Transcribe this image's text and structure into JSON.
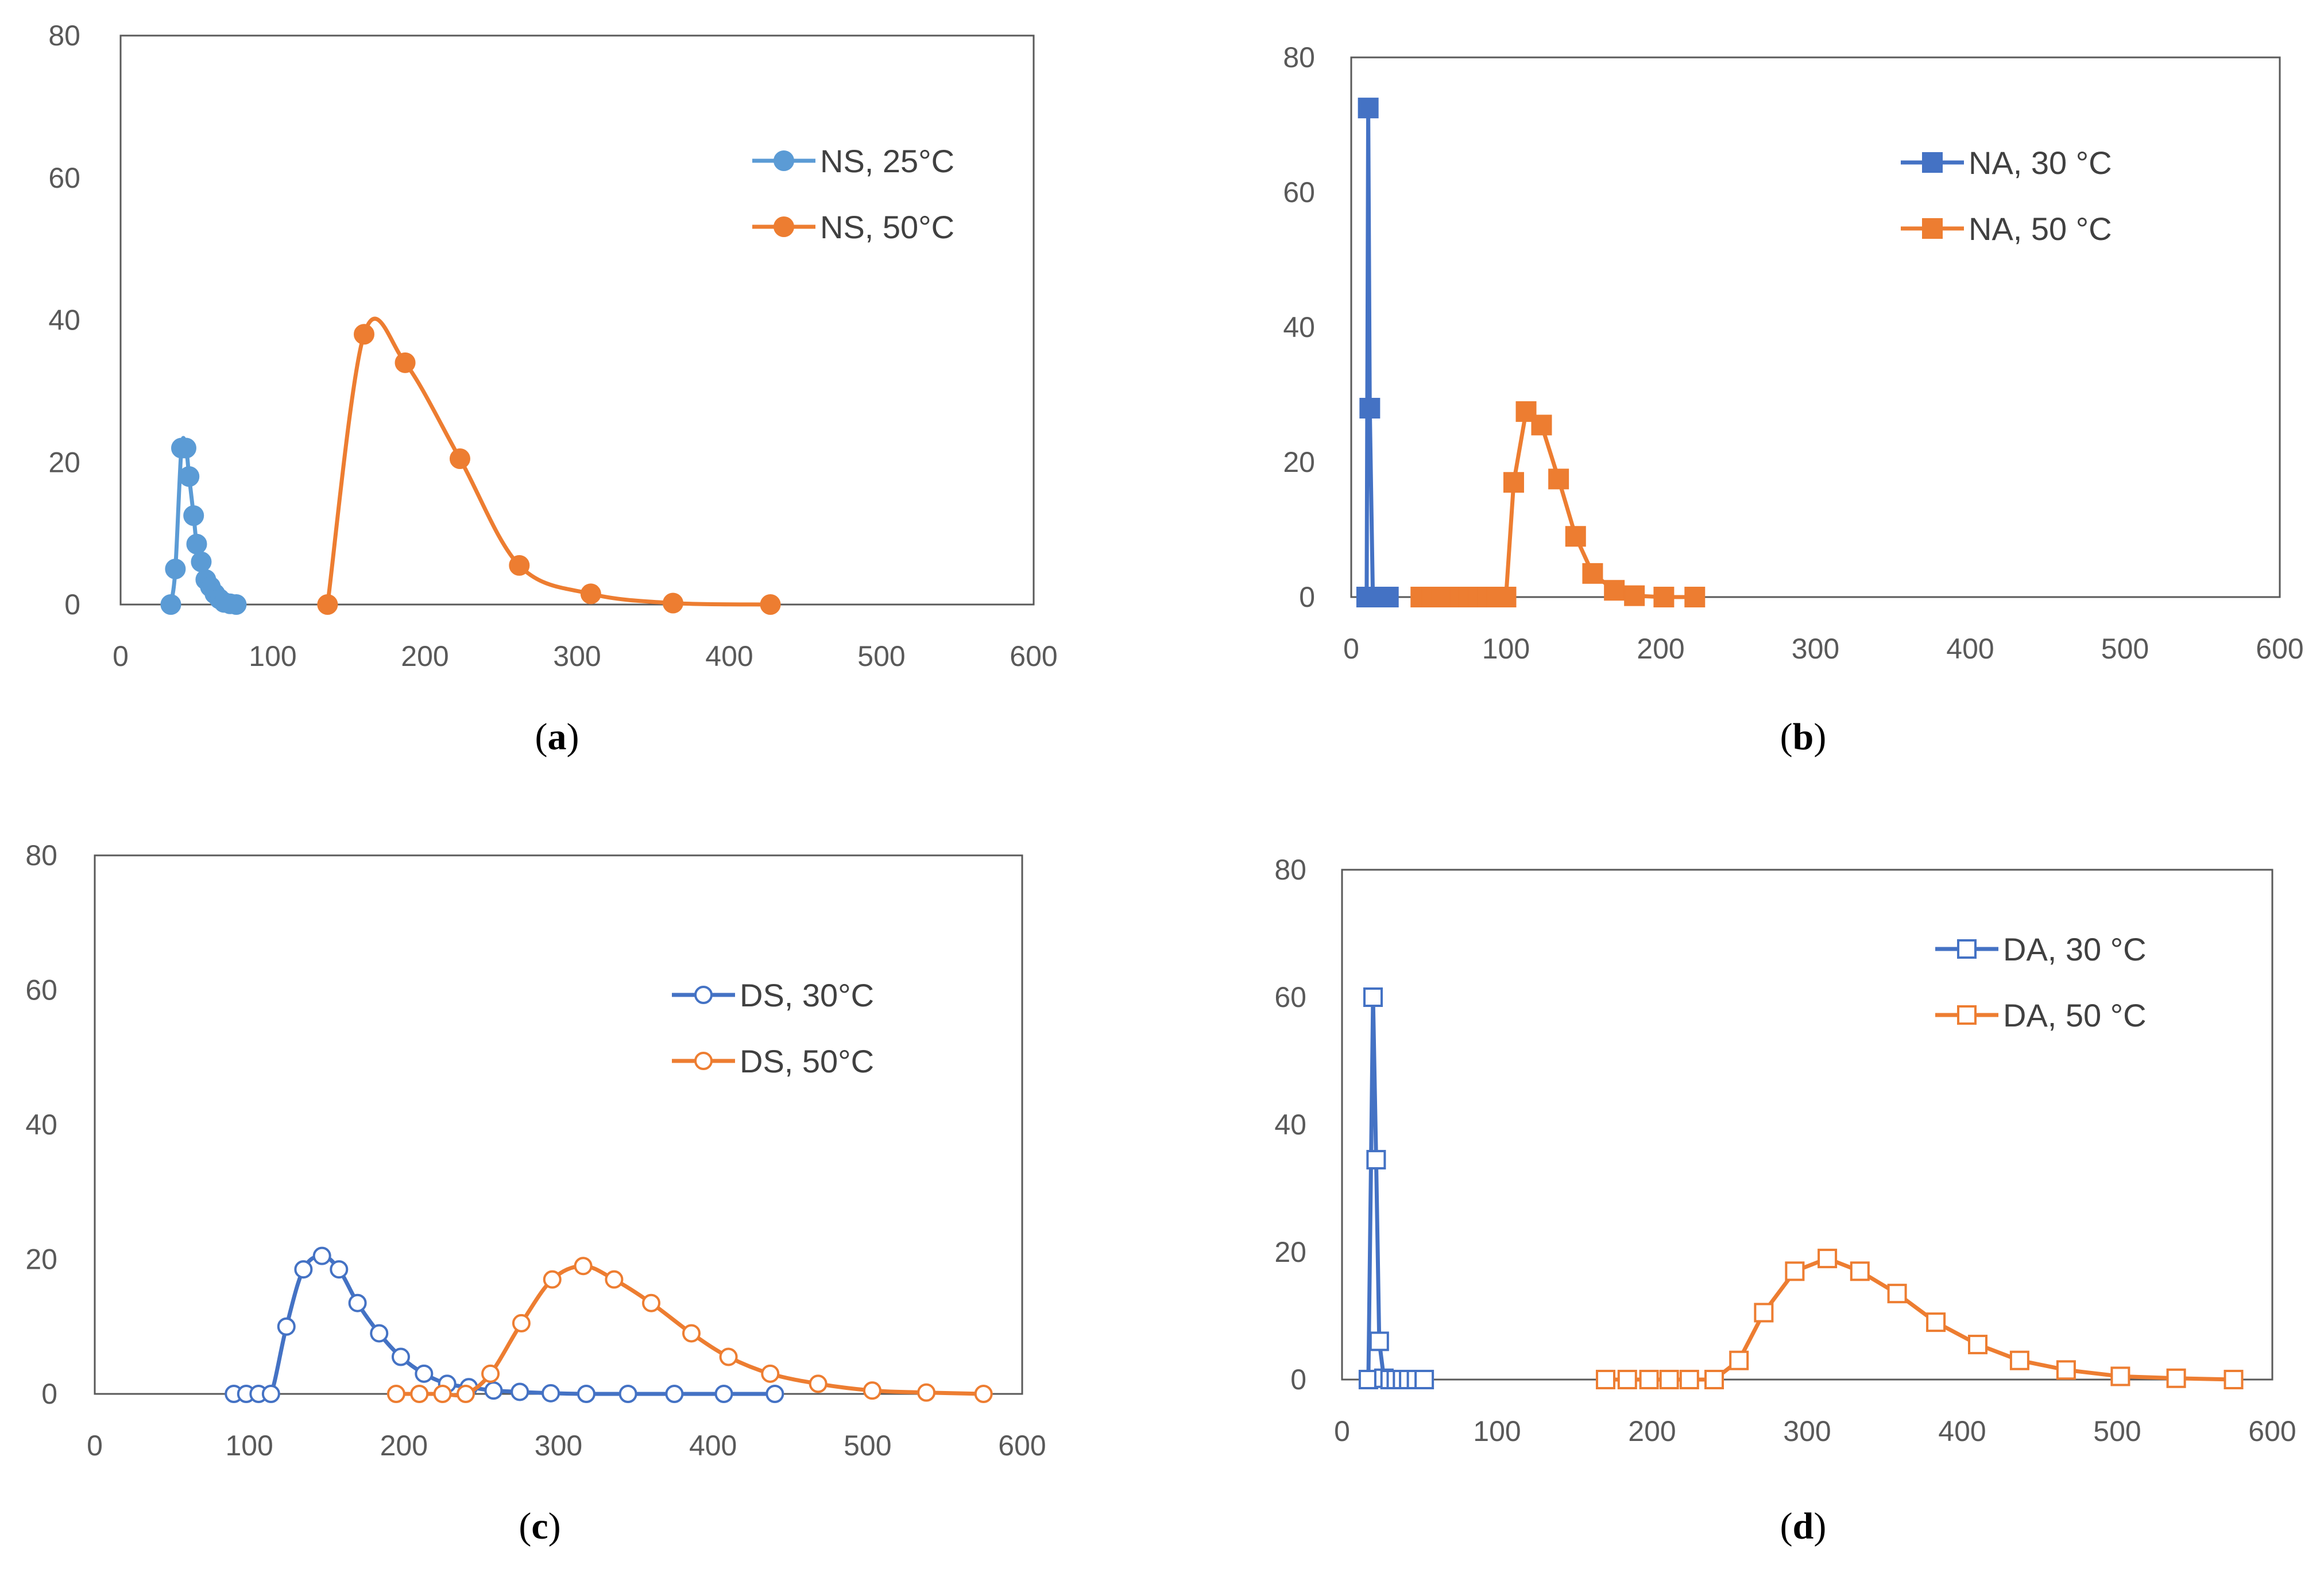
{
  "chart_data": [
    {
      "type": "line",
      "caption": "(a)",
      "caption_letter": "a",
      "xlim": [
        0,
        600
      ],
      "ylim": [
        0,
        80
      ],
      "x_ticks": [
        0,
        100,
        200,
        300,
        400,
        500,
        600
      ],
      "y_ticks": [
        0,
        20,
        40,
        60,
        80
      ],
      "series": [
        {
          "name": "NS, 25°C",
          "color": "#5b9bd5",
          "marker": "circle-filled",
          "smooth": true,
          "x": [
            33,
            36,
            40,
            43,
            45,
            48,
            50,
            53,
            56,
            59,
            62,
            65,
            68,
            72,
            76
          ],
          "y": [
            0,
            5,
            22,
            22,
            18,
            12.5,
            8.5,
            6,
            3.5,
            2.5,
            1.5,
            0.8,
            0.3,
            0.1,
            0
          ]
        },
        {
          "name": "NS, 50°C",
          "color": "#ed7d31",
          "marker": "circle-filled",
          "smooth": true,
          "x": [
            136,
            160,
            187,
            223,
            262,
            309,
            363,
            427
          ],
          "y": [
            0,
            38,
            34,
            20.5,
            5.5,
            1.5,
            0.2,
            0
          ]
        }
      ]
    },
    {
      "type": "line",
      "caption": "(b)",
      "caption_letter": "b",
      "xlim": [
        0,
        600
      ],
      "ylim": [
        0,
        80
      ],
      "x_ticks": [
        0,
        100,
        200,
        300,
        400,
        500,
        600
      ],
      "y_ticks": [
        0,
        20,
        40,
        60,
        80
      ],
      "series": [
        {
          "name": "NA, 30 °C",
          "color": "#4472c4",
          "marker": "square-filled",
          "smooth": false,
          "x": [
            10,
            11,
            12,
            14,
            17,
            20,
            24
          ],
          "y": [
            0,
            72.5,
            28,
            0,
            0,
            0,
            0
          ]
        },
        {
          "name": "NA, 50 °C",
          "color": "#ed7d31",
          "marker": "square-filled",
          "smooth": false,
          "x": [
            45,
            52,
            58,
            64,
            70,
            76,
            82,
            88,
            94,
            100,
            105,
            113,
            123,
            134,
            145,
            156,
            170,
            183,
            202,
            222
          ],
          "y": [
            0,
            0,
            0,
            0,
            0,
            0,
            0,
            0,
            0,
            0,
            17,
            27.5,
            25.5,
            17.5,
            9,
            3.5,
            1,
            0.2,
            0,
            0
          ]
        }
      ]
    },
    {
      "type": "line",
      "caption": "(c)",
      "caption_letter": "c",
      "xlim": [
        0,
        600
      ],
      "ylim": [
        0,
        80
      ],
      "x_ticks": [
        0,
        100,
        200,
        300,
        400,
        500,
        600
      ],
      "y_ticks": [
        0,
        20,
        40,
        60,
        80
      ],
      "series": [
        {
          "name": "DS, 30°C",
          "color": "#4472c4",
          "marker": "circle-open",
          "smooth": true,
          "x": [
            90,
            98,
            106,
            114,
            124,
            135,
            147,
            158,
            170,
            184,
            198,
            213,
            228,
            242,
            258,
            275,
            295,
            318,
            345,
            375,
            407,
            440
          ],
          "y": [
            0,
            0,
            0,
            0,
            10,
            18.5,
            20.5,
            18.5,
            13.5,
            9,
            5.5,
            3,
            1.5,
            1,
            0.5,
            0.3,
            0.1,
            0,
            0,
            0,
            0,
            0
          ]
        },
        {
          "name": "DS, 50°C",
          "color": "#ed7d31",
          "marker": "circle-open",
          "smooth": true,
          "x": [
            195,
            210,
            225,
            240,
            256,
            276,
            296,
            316,
            336,
            360,
            386,
            410,
            437,
            468,
            503,
            538,
            575
          ],
          "y": [
            0,
            0,
            0,
            0,
            3,
            10.5,
            17,
            19,
            17,
            13.5,
            9,
            5.5,
            3,
            1.5,
            0.5,
            0.2,
            0
          ]
        }
      ]
    },
    {
      "type": "line",
      "caption": "(d)",
      "caption_letter": "d",
      "xlim": [
        0,
        600
      ],
      "ylim": [
        0,
        80
      ],
      "x_ticks": [
        0,
        100,
        200,
        300,
        400,
        500,
        600
      ],
      "y_ticks": [
        0,
        20,
        40,
        60,
        80
      ],
      "series": [
        {
          "name": "DA, 30 °C",
          "color": "#4472c4",
          "marker": "square-open",
          "smooth": false,
          "x": [
            17,
            20,
            22,
            24,
            27,
            31,
            35,
            39,
            43,
            48,
            53
          ],
          "y": [
            0,
            60,
            34.5,
            6,
            0.2,
            0,
            0,
            0,
            0,
            0,
            0
          ]
        },
        {
          "name": "DA, 50 °C",
          "color": "#ed7d31",
          "marker": "square-open",
          "smooth": false,
          "x": [
            170,
            184,
            198,
            211,
            224,
            240,
            256,
            272,
            292,
            313,
            334,
            358,
            383,
            410,
            437,
            467,
            502,
            538,
            575
          ],
          "y": [
            0,
            0,
            0,
            0,
            0,
            0,
            3,
            10.5,
            17,
            19,
            17,
            13.5,
            9,
            5.5,
            3,
            1.5,
            0.5,
            0.2,
            0
          ]
        }
      ]
    }
  ]
}
